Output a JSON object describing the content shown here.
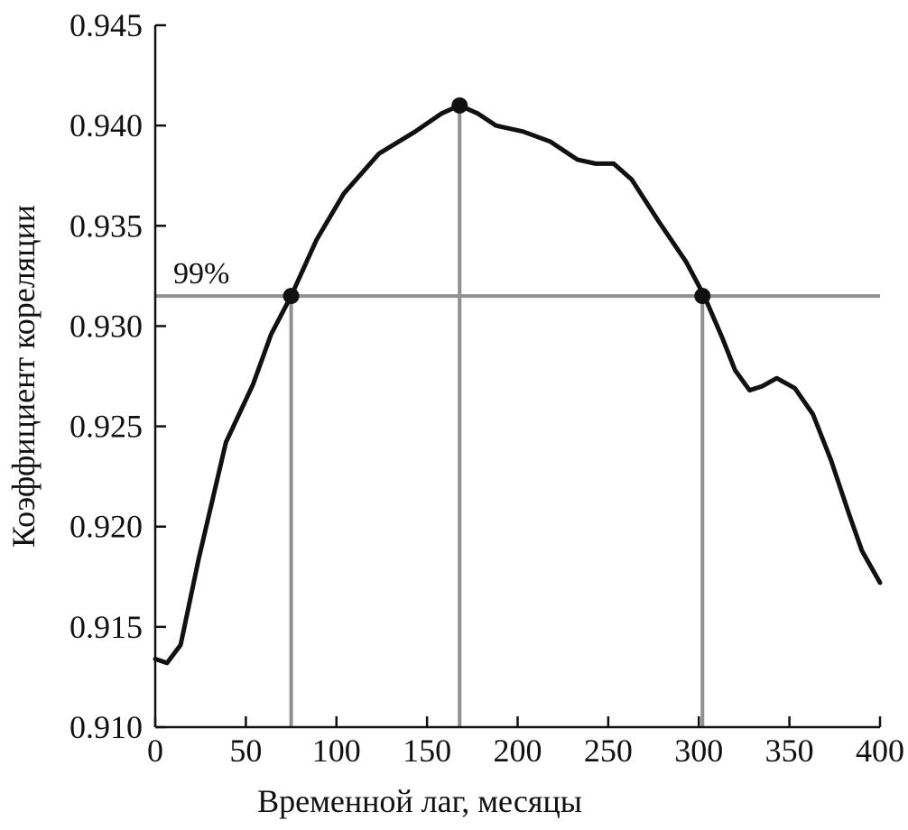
{
  "chart_data": {
    "type": "line",
    "xlabel": "Временной лаг, месяцы",
    "ylabel": "Коэффициент кореляции",
    "x": [
      0,
      6.5,
      14,
      24,
      39,
      54,
      64,
      75,
      89,
      104,
      123.5,
      143.5,
      158,
      168,
      178,
      188,
      203,
      218,
      233,
      243,
      253,
      263,
      278,
      293,
      303,
      313,
      320,
      328,
      335,
      343,
      353,
      363,
      373,
      383,
      390,
      400
    ],
    "series": [
      {
        "color": "#111111",
        "values": [
          0.9134,
          0.9132,
          0.9141,
          0.9184,
          0.9242,
          0.9271,
          0.9296,
          0.9315,
          0.9343,
          0.9366,
          0.9386,
          0.9397,
          0.9406,
          0.941,
          0.9406,
          0.94,
          0.9397,
          0.9392,
          0.9383,
          0.9381,
          0.9381,
          0.9373,
          0.9352,
          0.9332,
          0.9315,
          0.9294,
          0.9278,
          0.9268,
          0.927,
          0.9274,
          0.9269,
          0.9256,
          0.9233,
          0.9206,
          0.9188,
          0.9172
        ]
      }
    ],
    "threshold": 0.9315,
    "threshold_label": "99%",
    "markers": {
      "x": [
        75,
        168,
        302
      ],
      "values": [
        0.9315,
        0.941,
        0.9315
      ]
    },
    "reference_color": "#909090",
    "xlim": [
      0,
      400
    ],
    "xticks": [
      0,
      50,
      100,
      150,
      200,
      250,
      300,
      350,
      400
    ],
    "ylim": [
      0.91,
      0.945
    ],
    "yticks": [
      {
        "value": 0.91,
        "label": "0.910"
      },
      0.915,
      {
        "value": 0.92,
        "label": "0.920"
      },
      0.925,
      {
        "value": 0.93,
        "label": "0.930"
      },
      0.935,
      {
        "value": 0.94,
        "label": "0.940"
      },
      0.945
    ],
    "grid": false
  }
}
